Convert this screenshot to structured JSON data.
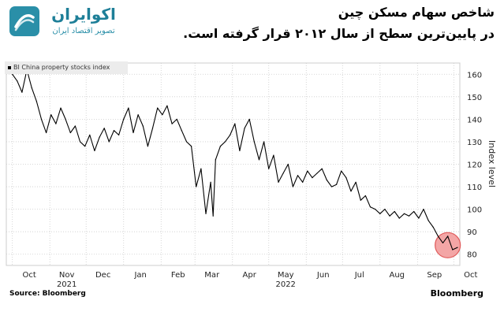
{
  "brand": {
    "name": "اکوایران",
    "tagline": "تصویر اقتصاد ایران"
  },
  "headline": {
    "line1": "شاخص سهام مسکن چین",
    "line2": "در پایین‌ترین سطح از سال ۲۰۱۲ قرار گرفته است."
  },
  "footer": {
    "source": "Source: Bloomberg",
    "publisher": "Bloomberg"
  },
  "colors": {
    "brand": "#2a8fa8",
    "line": "#000000",
    "highlight": "#f3a6a6",
    "highlight_stroke": "#e05a5a",
    "grid": "#cccccc"
  },
  "chart_data": {
    "type": "line",
    "title": "",
    "xlabel": "",
    "ylabel": "Index level",
    "ylim": [
      75,
      165
    ],
    "yticks": [
      80,
      90,
      100,
      110,
      120,
      130,
      140,
      150,
      160
    ],
    "grid": true,
    "legend_position": "top-left",
    "month_labels": [
      "Oct",
      "Nov",
      "Dec",
      "Jan",
      "Feb",
      "Mar",
      "Apr",
      "May",
      "Jun",
      "Jul",
      "Aug",
      "Sep",
      "Oct"
    ],
    "year_labels": [
      {
        "label": "2021",
        "under_month": "Nov"
      },
      {
        "label": "2022",
        "under_month": "May"
      }
    ],
    "series": [
      {
        "name": "BI China property stocks index",
        "x": [
          "2021-10-01",
          "2021-10-05",
          "2021-10-09",
          "2021-10-13",
          "2021-10-17",
          "2021-10-21",
          "2021-10-25",
          "2021-10-29",
          "2021-11-02",
          "2021-11-06",
          "2021-11-10",
          "2021-11-14",
          "2021-11-18",
          "2021-11-22",
          "2021-11-26",
          "2021-11-30",
          "2021-12-04",
          "2021-12-08",
          "2021-12-12",
          "2021-12-16",
          "2021-12-20",
          "2021-12-24",
          "2021-12-28",
          "2022-01-01",
          "2022-01-05",
          "2022-01-09",
          "2022-01-13",
          "2022-01-17",
          "2022-01-21",
          "2022-01-25",
          "2022-01-29",
          "2022-02-02",
          "2022-02-06",
          "2022-02-10",
          "2022-02-14",
          "2022-02-18",
          "2022-02-22",
          "2022-02-26",
          "2022-03-02",
          "2022-03-06",
          "2022-03-10",
          "2022-03-14",
          "2022-03-16",
          "2022-03-18",
          "2022-03-22",
          "2022-03-26",
          "2022-03-30",
          "2022-04-03",
          "2022-04-07",
          "2022-04-11",
          "2022-04-15",
          "2022-04-19",
          "2022-04-23",
          "2022-04-27",
          "2022-05-01",
          "2022-05-05",
          "2022-05-09",
          "2022-05-13",
          "2022-05-17",
          "2022-05-21",
          "2022-05-25",
          "2022-05-29",
          "2022-06-02",
          "2022-06-06",
          "2022-06-10",
          "2022-06-14",
          "2022-06-18",
          "2022-06-22",
          "2022-06-26",
          "2022-06-30",
          "2022-07-04",
          "2022-07-08",
          "2022-07-12",
          "2022-07-16",
          "2022-07-20",
          "2022-07-24",
          "2022-07-28",
          "2022-08-01",
          "2022-08-05",
          "2022-08-09",
          "2022-08-13",
          "2022-08-17",
          "2022-08-21",
          "2022-08-25",
          "2022-08-29",
          "2022-09-02",
          "2022-09-06",
          "2022-09-10",
          "2022-09-14",
          "2022-09-18",
          "2022-09-22",
          "2022-09-26",
          "2022-09-30",
          "2022-10-04"
        ],
        "y": [
          160,
          157,
          152,
          162,
          154,
          148,
          140,
          134,
          142,
          138,
          145,
          140,
          134,
          137,
          130,
          128,
          133,
          126,
          132,
          136,
          130,
          135,
          133,
          140,
          145,
          134,
          142,
          137,
          128,
          136,
          145,
          142,
          146,
          138,
          140,
          135,
          130,
          128,
          110,
          118,
          98,
          112,
          97,
          122,
          128,
          130,
          133,
          138,
          126,
          136,
          140,
          130,
          122,
          130,
          118,
          124,
          112,
          116,
          120,
          110,
          115,
          112,
          117,
          114,
          116,
          118,
          113,
          110,
          111,
          117,
          114,
          108,
          112,
          104,
          106,
          101,
          100,
          98,
          100,
          97,
          99,
          96,
          98,
          97,
          99,
          96,
          100,
          95,
          92,
          88,
          85,
          88,
          82,
          83
        ]
      }
    ],
    "annotations": [
      {
        "type": "circle",
        "x": "2022-09-26",
        "y": 84
      }
    ]
  }
}
